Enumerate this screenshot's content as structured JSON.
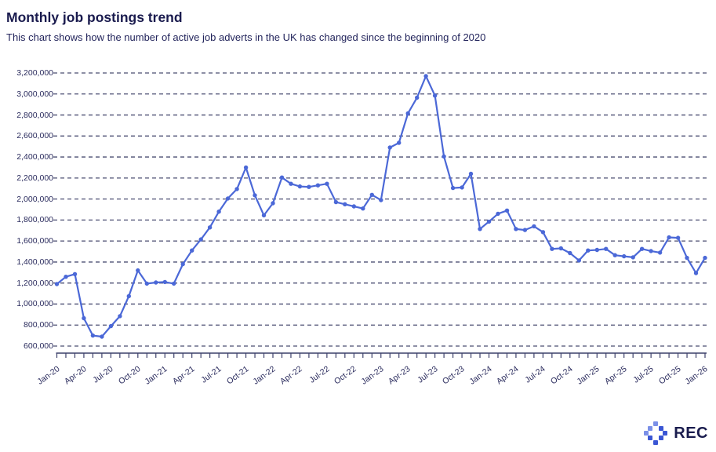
{
  "header": {
    "title": "Monthly job postings trend",
    "subtitle": "This chart shows how the number of active job adverts in the UK has changed since the beginning of 2020"
  },
  "logo": {
    "text": "REC"
  },
  "chart_data": {
    "type": "line",
    "title": "Monthly job postings trend",
    "xlabel": "",
    "ylabel": "",
    "grid": true,
    "legend_position": "none",
    "line_color": "#4b68d7",
    "point_color": "#4b68d7",
    "gridline_color": "#4b4e72",
    "axis_color": "#3c406a",
    "label_color": "#2b2c5e",
    "ylim": [
      600000,
      3200000
    ],
    "ytick_step": 200000,
    "ytick_labels_top_to_bottom": [
      "3,200,000",
      "3,000,000",
      "2,800,000",
      "2,600,000",
      "2,400,000",
      "2,200,000",
      "2,000,000",
      "1,800,000",
      "1,600,000",
      "1,400,000",
      "1,200,000",
      "1,000,000",
      "800,000",
      "600,000"
    ],
    "xtick_labels_shown": [
      "Jan-20",
      "Apr-20",
      "Jul-20",
      "Oct-20",
      "Jan-21",
      "Apr-21",
      "Jul-21",
      "Oct-21",
      "Jan-22",
      "Apr-22",
      "Jul-22",
      "Oct-22",
      "Jan-23",
      "Apr-23",
      "Jul-23",
      "Oct-23",
      "Jan-24",
      "Apr-24",
      "Jul-24",
      "Oct-24",
      "Jan-25",
      "Apr-25",
      "Jul-25",
      "Oct-25",
      "Jan-26"
    ],
    "categories": [
      "Jan-20",
      "Feb-20",
      "Mar-20",
      "Apr-20",
      "May-20",
      "Jun-20",
      "Jul-20",
      "Aug-20",
      "Sep-20",
      "Oct-20",
      "Nov-20",
      "Dec-20",
      "Jan-21",
      "Feb-21",
      "Mar-21",
      "Apr-21",
      "May-21",
      "Jun-21",
      "Jul-21",
      "Aug-21",
      "Sep-21",
      "Oct-21",
      "Nov-21",
      "Dec-21",
      "Jan-22",
      "Feb-22",
      "Mar-22",
      "Apr-22",
      "May-22",
      "Jun-22",
      "Jul-22",
      "Aug-22",
      "Sep-22",
      "Oct-22",
      "Nov-22",
      "Dec-22",
      "Jan-23",
      "Feb-23",
      "Mar-23",
      "Apr-23",
      "May-23",
      "Jun-23",
      "Jul-23",
      "Aug-23",
      "Sep-23",
      "Oct-23",
      "Nov-23",
      "Dec-23",
      "Jan-24",
      "Feb-24",
      "Mar-24",
      "Apr-24",
      "May-24",
      "Jun-24",
      "Jul-24",
      "Aug-24",
      "Sep-24",
      "Oct-24",
      "Nov-24",
      "Dec-24",
      "Jan-25",
      "Feb-25",
      "Mar-25",
      "Apr-25",
      "May-25",
      "Jun-25",
      "Jul-25",
      "Aug-25",
      "Sep-25",
      "Oct-25",
      "Nov-25",
      "Dec-25",
      "Jan-26"
    ],
    "values": [
      1190000,
      1260000,
      1285000,
      865000,
      700000,
      690000,
      790000,
      885000,
      1075000,
      1320000,
      1195000,
      1205000,
      1210000,
      1195000,
      1380000,
      1510000,
      1615000,
      1730000,
      1880000,
      2005000,
      2095000,
      2300000,
      2035000,
      1845000,
      1960000,
      2205000,
      2145000,
      2120000,
      2115000,
      2130000,
      2145000,
      1970000,
      1950000,
      1930000,
      1910000,
      2040000,
      1990000,
      2490000,
      2535000,
      2815000,
      2965000,
      3170000,
      2985000,
      2405000,
      2105000,
      2110000,
      2240000,
      1715000,
      1785000,
      1860000,
      1890000,
      1715000,
      1705000,
      1740000,
      1685000,
      1525000,
      1530000,
      1485000,
      1415000,
      1510000,
      1515000,
      1525000,
      1465000,
      1455000,
      1445000,
      1525000,
      1505000,
      1490000,
      1635000,
      1630000,
      1440000,
      1295000,
      1440000
    ]
  }
}
